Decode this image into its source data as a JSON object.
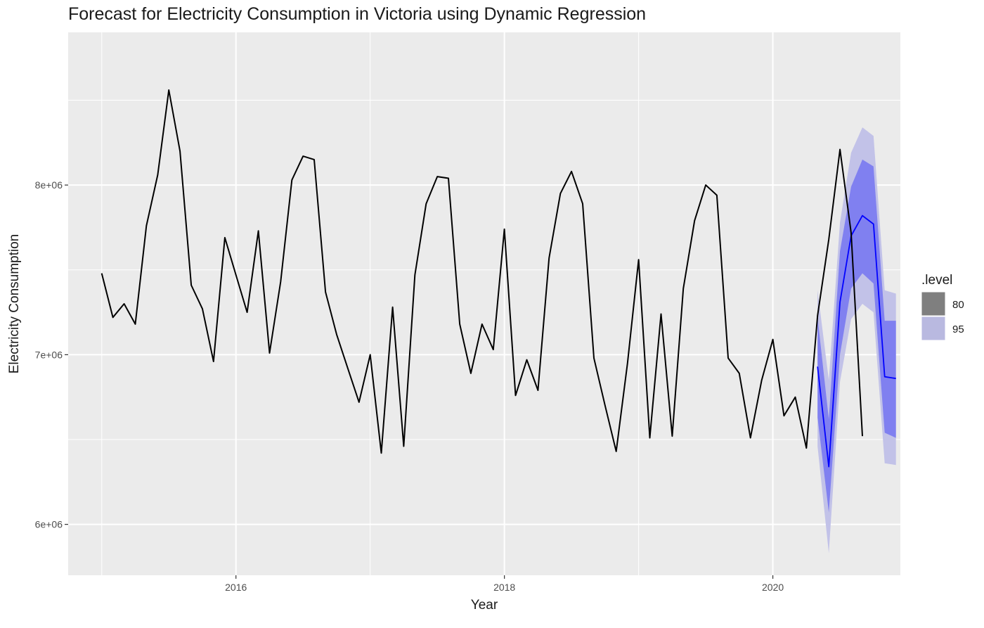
{
  "chart_data": {
    "type": "line",
    "title": "Forecast for Electricity Consumption in Victoria using Dynamic Regression",
    "xlabel": "Year",
    "ylabel": "Electricity Consumption",
    "xlim": [
      2014.75,
      2020.95
    ],
    "ylim": [
      5700000,
      8900000
    ],
    "x_ticks": [
      {
        "value": 2016,
        "label": "2016"
      },
      {
        "value": 2018,
        "label": "2018"
      },
      {
        "value": 2020,
        "label": "2020"
      }
    ],
    "y_ticks": [
      {
        "value": 6000000,
        "label": "6e+06"
      },
      {
        "value": 7000000,
        "label": "7e+06"
      },
      {
        "value": 8000000,
        "label": "8e+06"
      }
    ],
    "grid": true,
    "legend": {
      "title": ".level",
      "position": "right",
      "entries": [
        {
          "label": "80",
          "color": "#7f7f7f"
        },
        {
          "label": "95",
          "color": "#b9b9e0"
        }
      ]
    },
    "colors": {
      "panel_background": "#ebebeb",
      "gridline": "#ffffff",
      "observed_line": "#000000",
      "forecast_line": "#0000ff",
      "interval_80": "#8080f0",
      "interval_95": "#c2c2e8"
    },
    "observed": {
      "x": [
        2015.0,
        2015.083,
        2015.167,
        2015.25,
        2015.333,
        2015.417,
        2015.5,
        2015.583,
        2015.667,
        2015.75,
        2015.833,
        2015.917,
        2016.0,
        2016.083,
        2016.167,
        2016.25,
        2016.333,
        2016.417,
        2016.5,
        2016.583,
        2016.667,
        2016.75,
        2016.833,
        2016.917,
        2017.0,
        2017.083,
        2017.167,
        2017.25,
        2017.333,
        2017.417,
        2017.5,
        2017.583,
        2017.667,
        2017.75,
        2017.833,
        2017.917,
        2018.0,
        2018.083,
        2018.167,
        2018.25,
        2018.333,
        2018.417,
        2018.5,
        2018.583,
        2018.667,
        2018.75,
        2018.833,
        2018.917,
        2019.0,
        2019.083,
        2019.167,
        2019.25,
        2019.333,
        2019.417,
        2019.5,
        2019.583,
        2019.667,
        2019.75,
        2019.833,
        2019.917,
        2020.0,
        2020.083,
        2020.167,
        2020.25,
        2020.333,
        2020.417,
        2020.5,
        2020.583,
        2020.667
      ],
      "y": [
        7480000,
        7220000,
        7300000,
        7180000,
        7760000,
        8060000,
        8560000,
        8200000,
        7410000,
        7270000,
        6960000,
        7690000,
        7470000,
        7250000,
        7730000,
        7010000,
        7430000,
        8030000,
        8170000,
        8150000,
        7370000,
        7120000,
        6920000,
        6720000,
        7000000,
        6420000,
        7280000,
        6460000,
        7470000,
        7890000,
        8050000,
        8040000,
        7180000,
        6890000,
        7180000,
        7030000,
        7740000,
        6760000,
        6970000,
        6790000,
        7570000,
        7950000,
        8080000,
        7890000,
        6980000,
        6700000,
        6430000,
        6950000,
        7560000,
        6510000,
        7240000,
        6520000,
        7390000,
        7790000,
        8000000,
        7940000,
        6980000,
        6890000,
        6510000,
        6850000,
        7090000,
        6640000,
        6750000,
        6450000,
        7230000,
        7680000,
        8210000,
        7720000,
        6520000
      ]
    },
    "forecast": {
      "x": [
        2020.333,
        2020.417,
        2020.5,
        2020.583,
        2020.667,
        2020.75,
        2020.833,
        2020.917
      ],
      "y": [
        6930000,
        6340000,
        7310000,
        7700000,
        7820000,
        7770000,
        6870000,
        6860000
      ],
      "lo80": [
        6630000,
        6070000,
        7000000,
        7390000,
        7480000,
        7420000,
        6540000,
        6510000
      ],
      "hi80": [
        7220000,
        6620000,
        7610000,
        7990000,
        8150000,
        8110000,
        7200000,
        7200000
      ],
      "lo95": [
        6460000,
        5830000,
        6840000,
        7210000,
        7300000,
        7250000,
        6360000,
        6350000
      ],
      "hi95": [
        7380000,
        6850000,
        7780000,
        8190000,
        8340000,
        8290000,
        7380000,
        7360000
      ]
    }
  }
}
